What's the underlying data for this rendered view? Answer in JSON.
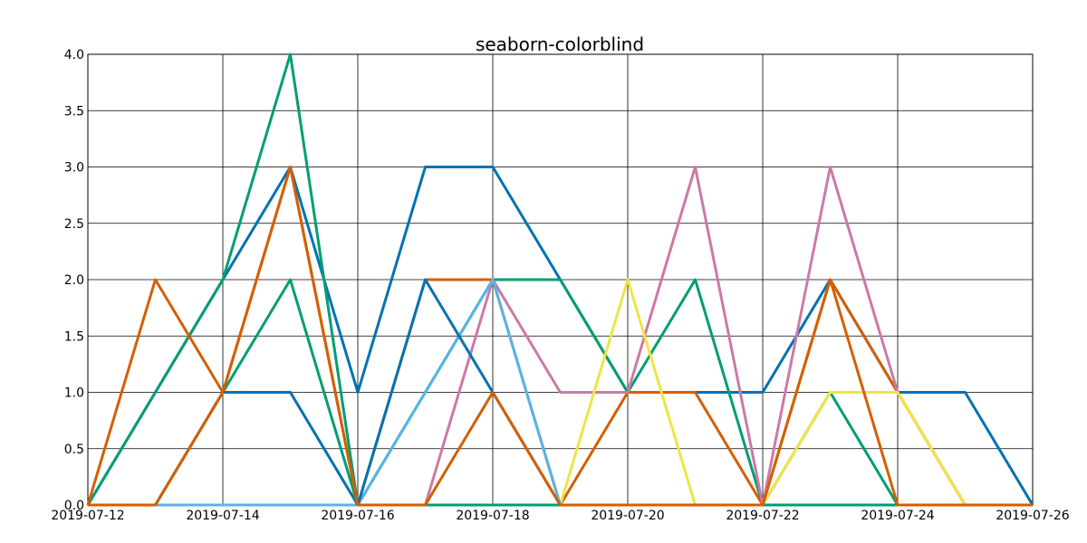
{
  "chart_data": {
    "type": "line",
    "title": "seaborn-colorblind",
    "x": [
      "2019-07-12",
      "2019-07-13",
      "2019-07-14",
      "2019-07-15",
      "2019-07-16",
      "2019-07-17",
      "2019-07-18",
      "2019-07-19",
      "2019-07-20",
      "2019-07-21",
      "2019-07-22",
      "2019-07-23",
      "2019-07-24",
      "2019-07-25",
      "2019-07-26"
    ],
    "xticks": [
      "2019-07-12",
      "2019-07-14",
      "2019-07-16",
      "2019-07-18",
      "2019-07-20",
      "2019-07-22",
      "2019-07-24",
      "2019-07-26"
    ],
    "ylim": [
      0,
      4
    ],
    "yticks": [
      {
        "value": 0,
        "label": "0.0"
      },
      {
        "value": 0.5,
        "label": "0.5"
      },
      {
        "value": 1,
        "label": "1.0"
      },
      {
        "value": 1.5,
        "label": "1.5"
      },
      {
        "value": 2,
        "label": "2.0"
      },
      {
        "value": 2.5,
        "label": "2.5"
      },
      {
        "value": 3,
        "label": "3.0"
      },
      {
        "value": 3.5,
        "label": "3.5"
      },
      {
        "value": 4,
        "label": "4.0"
      }
    ],
    "grid": true,
    "series": [
      {
        "color": "#0072B2",
        "values": [
          0,
          1,
          2,
          3,
          1,
          3,
          3,
          2,
          1,
          1,
          1,
          2,
          1,
          1,
          0
        ]
      },
      {
        "color": "#009E73",
        "values": [
          0,
          1,
          2,
          4,
          0,
          1,
          2,
          2,
          1,
          2,
          0,
          1,
          0,
          0,
          0
        ]
      },
      {
        "color": "#D55E00",
        "values": [
          0,
          2,
          1,
          3,
          0,
          2,
          2,
          0,
          1,
          1,
          0,
          2,
          1,
          0,
          0
        ]
      },
      {
        "color": "#CC79A7",
        "values": [
          0,
          0,
          0,
          0,
          0,
          0,
          2,
          1,
          1,
          3,
          0,
          3,
          1,
          0,
          0
        ]
      },
      {
        "color": "#F0E442",
        "values": [
          0,
          0,
          0,
          0,
          0,
          0,
          0,
          0,
          2,
          0,
          0,
          1,
          1,
          0,
          0
        ]
      },
      {
        "color": "#56B4E9",
        "values": [
          0,
          0,
          0,
          0,
          0,
          1,
          2,
          0,
          0,
          0,
          0,
          0,
          0,
          0,
          0
        ]
      },
      {
        "color": "#0072B2",
        "values": [
          0,
          0,
          1,
          1,
          0,
          2,
          1,
          0,
          0,
          0,
          0,
          0,
          0,
          0,
          0
        ]
      },
      {
        "color": "#009E73",
        "values": [
          0,
          0,
          1,
          2,
          0,
          0,
          0,
          0,
          0,
          0,
          0,
          0,
          0,
          0,
          0
        ]
      },
      {
        "color": "#D55E00",
        "values": [
          0,
          0,
          1,
          3,
          0,
          0,
          1,
          0,
          0,
          0,
          0,
          2,
          0,
          0,
          0
        ]
      }
    ]
  }
}
